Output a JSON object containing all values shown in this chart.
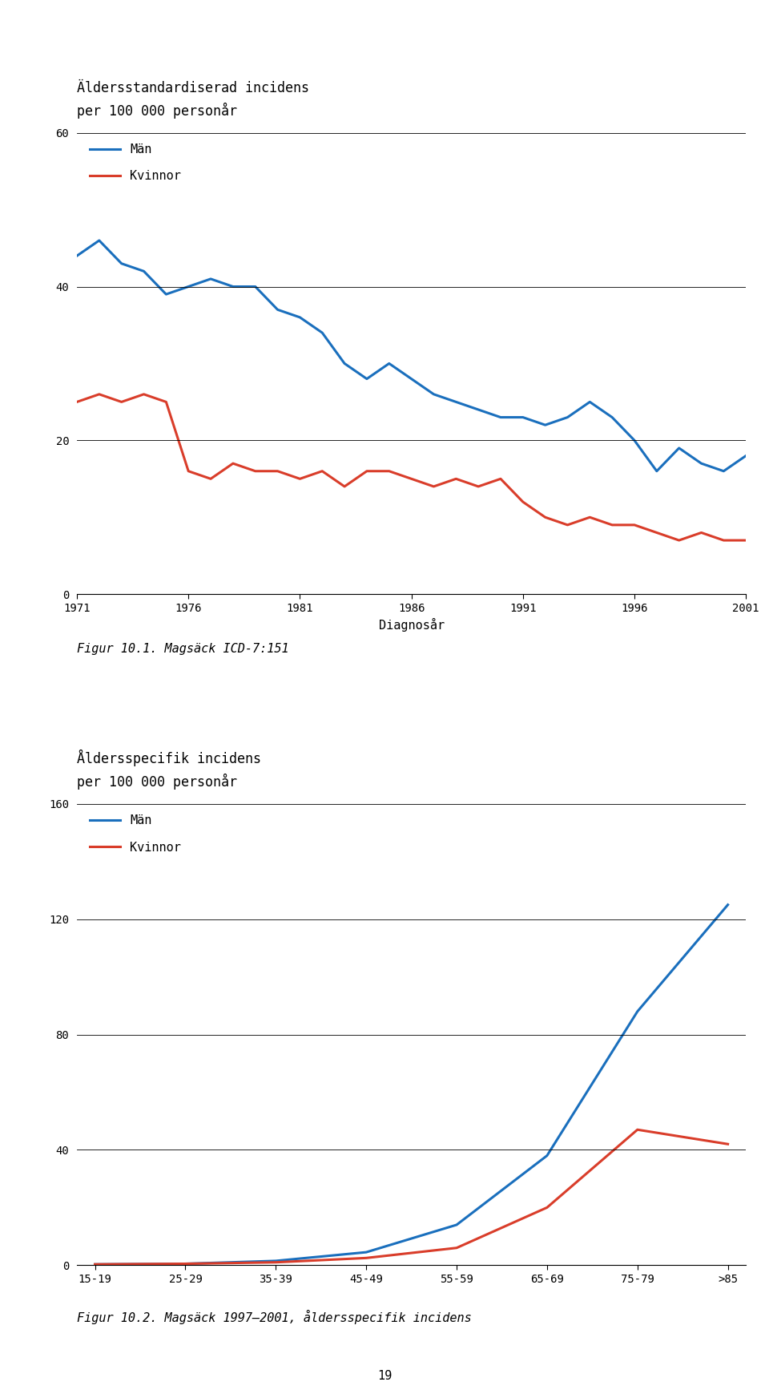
{
  "chart1": {
    "title_line1": "Äldersstandardiserad incidens",
    "title_line2": "per 100 000 personår",
    "xlabel": "Diagnosår",
    "legend_man": "Män",
    "legend_kvinna": "Kvinnor",
    "years": [
      1971,
      1972,
      1973,
      1974,
      1975,
      1976,
      1977,
      1978,
      1979,
      1980,
      1981,
      1982,
      1983,
      1984,
      1985,
      1986,
      1987,
      1988,
      1989,
      1990,
      1991,
      1992,
      1993,
      1994,
      1995,
      1996,
      1997,
      1998,
      1999,
      2000,
      2001
    ],
    "man": [
      44,
      46,
      43,
      42,
      39,
      40,
      41,
      40,
      40,
      37,
      36,
      34,
      30,
      28,
      30,
      28,
      26,
      25,
      24,
      23,
      23,
      22,
      23,
      25,
      23,
      20,
      16,
      19,
      17,
      16,
      18
    ],
    "kvinna": [
      25,
      26,
      25,
      26,
      25,
      16,
      15,
      17,
      16,
      16,
      15,
      16,
      14,
      16,
      16,
      15,
      14,
      15,
      14,
      15,
      12,
      10,
      9,
      10,
      9,
      9,
      8,
      7,
      8,
      7,
      7
    ],
    "ylim": [
      0,
      60
    ],
    "yticks": [
      0,
      20,
      40,
      60
    ],
    "xticks": [
      1971,
      1976,
      1981,
      1986,
      1991,
      1996,
      2001
    ],
    "man_color": "#1a6fbd",
    "kvinna_color": "#d93d2a",
    "caption": "Figur 10.1. Magsäck ICD-7:151"
  },
  "chart2": {
    "title_line1": "Åldersspecifik incidens",
    "title_line2": "per 100 000 personår",
    "legend_man": "Män",
    "legend_kvinna": "Kvinnor",
    "age_groups": [
      "15-19",
      "25-29",
      "35-39",
      "45-49",
      "55-59",
      "65-69",
      "75-79",
      ">85"
    ],
    "man": [
      0.3,
      0.5,
      1.5,
      4.5,
      14,
      38,
      88,
      125
    ],
    "kvinna": [
      0.3,
      0.5,
      1.0,
      2.5,
      6,
      20,
      47,
      42
    ],
    "ylim": [
      0,
      160
    ],
    "yticks": [
      0,
      40,
      80,
      120,
      160
    ],
    "man_color": "#1a6fbd",
    "kvinna_color": "#d93d2a",
    "caption": "Figur 10.2. Magsäck 1997–2001, åldersspecifik incidens"
  },
  "page_number": "19",
  "background_color": "#ffffff",
  "line_width": 2.2,
  "font_size_title": 12,
  "font_size_axis": 11,
  "font_size_legend": 11,
  "font_size_tick": 10,
  "font_size_caption": 11
}
